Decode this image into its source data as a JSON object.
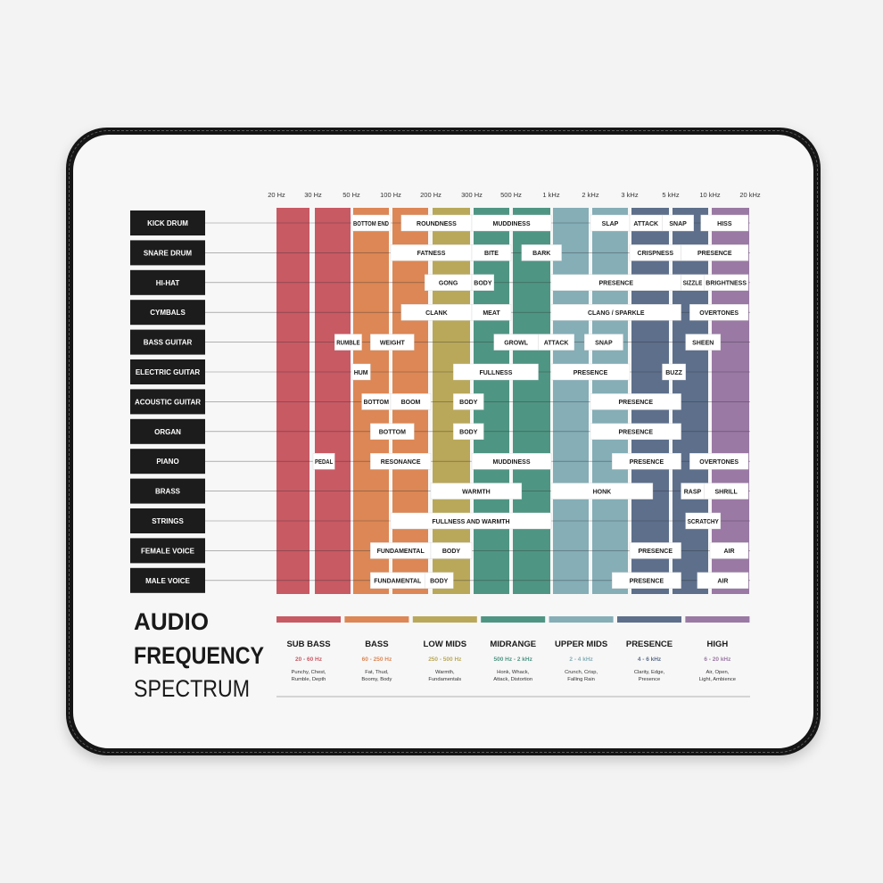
{
  "colors": {
    "sub_bass": "#c85a64",
    "bass": "#dc8755",
    "low_mids": "#b9a85a",
    "midrange": "#4f9583",
    "upper_mids": "#85aeb7",
    "presence": "#5d6f8b",
    "high": "#9a79a4"
  },
  "title": {
    "line1": "AUDIO",
    "line2": "FREQUENCY",
    "line3": "SPECTRUM"
  },
  "frequencies": [
    {
      "label": "20 Hz",
      "hz": 20
    },
    {
      "label": "30 Hz",
      "hz": 30
    },
    {
      "label": "50 Hz",
      "hz": 50
    },
    {
      "label": "100 Hz",
      "hz": 100
    },
    {
      "label": "200 Hz",
      "hz": 200
    },
    {
      "label": "300 Hz",
      "hz": 300
    },
    {
      "label": "500 Hz",
      "hz": 500
    },
    {
      "label": "1 kHz",
      "hz": 1000
    },
    {
      "label": "2 kHz",
      "hz": 2000
    },
    {
      "label": "3 kHz",
      "hz": 3000
    },
    {
      "label": "5 kHz",
      "hz": 5000
    },
    {
      "label": "10 kHz",
      "hz": 10000
    },
    {
      "label": "20 kHz",
      "hz": 20000
    }
  ],
  "instruments": [
    {
      "name": "KICK DRUM",
      "tags": [
        {
          "text": "BOTTOM END",
          "from": 50,
          "to": 100
        },
        {
          "text": "ROUNDNESS",
          "from": 120,
          "to": 300
        },
        {
          "text": "MUDDINESS",
          "from": 300,
          "to": 1000
        },
        {
          "text": "SLAP",
          "from": 2000,
          "to": 3000
        },
        {
          "text": "ATTACK",
          "from": 3000,
          "to": 4500
        },
        {
          "text": "SNAP",
          "from": 4500,
          "to": 7500
        },
        {
          "text": "HISS",
          "from": 8500,
          "to": 20000
        }
      ]
    },
    {
      "name": "SNARE DRUM",
      "tags": [
        {
          "text": "FATNESS",
          "from": 100,
          "to": 300
        },
        {
          "text": "BITE",
          "from": 300,
          "to": 500
        },
        {
          "text": "BARK",
          "from": 600,
          "to": 1200
        },
        {
          "text": "CRISPNESS",
          "from": 3000,
          "to": 6000
        },
        {
          "text": "PRESENCE",
          "from": 6000,
          "to": 20000
        }
      ]
    },
    {
      "name": "HI-HAT",
      "tags": [
        {
          "text": "GONG",
          "from": 180,
          "to": 300
        },
        {
          "text": "BODY",
          "from": 300,
          "to": 400
        },
        {
          "text": "PRESENCE",
          "from": 1000,
          "to": 6000
        },
        {
          "text": "SIZZLE",
          "from": 6000,
          "to": 9000
        },
        {
          "text": "BRIGHTNESS",
          "from": 9000,
          "to": 20000
        }
      ]
    },
    {
      "name": "CYMBALS",
      "tags": [
        {
          "text": "CLANK",
          "from": 120,
          "to": 300
        },
        {
          "text": "MEAT",
          "from": 300,
          "to": 500
        },
        {
          "text": "CLANG / SPARKLE",
          "from": 1000,
          "to": 6000
        },
        {
          "text": "OVERTONES",
          "from": 7000,
          "to": 20000
        }
      ]
    },
    {
      "name": "BASS GUITAR",
      "tags": [
        {
          "text": "RUMBLE",
          "from": 40,
          "to": 60
        },
        {
          "text": "WEIGHT",
          "from": 70,
          "to": 150
        },
        {
          "text": "GROWL",
          "from": 400,
          "to": 800
        },
        {
          "text": "ATTACK",
          "from": 800,
          "to": 1500
        },
        {
          "text": "SNAP",
          "from": 1800,
          "to": 2800
        },
        {
          "text": "SHEEN",
          "from": 6500,
          "to": 12000
        }
      ]
    },
    {
      "name": "ELECTRIC GUITAR",
      "tags": [
        {
          "text": "HUM",
          "from": 50,
          "to": 70
        },
        {
          "text": "FULLNESS",
          "from": 250,
          "to": 800
        },
        {
          "text": "PRESENCE",
          "from": 1000,
          "to": 3000
        },
        {
          "text": "BUZZ",
          "from": 4500,
          "to": 6500
        }
      ]
    },
    {
      "name": "ACOUSTIC GUITAR",
      "tags": [
        {
          "text": "BOTTOM",
          "from": 60,
          "to": 100
        },
        {
          "text": "BOOM",
          "from": 100,
          "to": 200
        },
        {
          "text": "BODY",
          "from": 250,
          "to": 350
        },
        {
          "text": "PRESENCE",
          "from": 2000,
          "to": 6000
        }
      ]
    },
    {
      "name": "ORGAN",
      "tags": [
        {
          "text": "BOTTOM",
          "from": 70,
          "to": 150
        },
        {
          "text": "BODY",
          "from": 250,
          "to": 350
        },
        {
          "text": "PRESENCE",
          "from": 2000,
          "to": 6000
        }
      ]
    },
    {
      "name": "PIANO",
      "tags": [
        {
          "text": "PEDAL",
          "from": 30,
          "to": 40
        },
        {
          "text": "RESONANCE",
          "from": 70,
          "to": 200
        },
        {
          "text": "MUDDINESS",
          "from": 300,
          "to": 1000
        },
        {
          "text": "PRESENCE",
          "from": 2500,
          "to": 6000
        },
        {
          "text": "OVERTONES",
          "from": 7000,
          "to": 20000
        }
      ]
    },
    {
      "name": "BRASS",
      "tags": [
        {
          "text": "WARMTH",
          "from": 200,
          "to": 600
        },
        {
          "text": "HONK",
          "from": 1000,
          "to": 4000
        },
        {
          "text": "RASP",
          "from": 6000,
          "to": 9000
        },
        {
          "text": "SHRILL",
          "from": 9000,
          "to": 20000
        }
      ]
    },
    {
      "name": "STRINGS",
      "tags": [
        {
          "text": "FULLNESS AND WARMTH",
          "from": 100,
          "to": 1000
        },
        {
          "text": "SCRATCHY",
          "from": 6500,
          "to": 12000
        }
      ]
    },
    {
      "name": "FEMALE VOICE",
      "tags": [
        {
          "text": "FUNDAMENTAL",
          "from": 70,
          "to": 200
        },
        {
          "text": "BODY",
          "from": 200,
          "to": 300
        },
        {
          "text": "PRESENCE",
          "from": 3000,
          "to": 6000
        },
        {
          "text": "AIR",
          "from": 10000,
          "to": 20000
        }
      ]
    },
    {
      "name": "MALE VOICE",
      "tags": [
        {
          "text": "FUNDAMENTAL",
          "from": 70,
          "to": 180
        },
        {
          "text": "BODY",
          "from": 180,
          "to": 250
        },
        {
          "text": "PRESENCE",
          "from": 2500,
          "to": 6000
        },
        {
          "text": "AIR",
          "from": 8000,
          "to": 20000
        }
      ]
    }
  ],
  "bands": [
    {
      "name": "SUB BASS",
      "range": "20 - 60 Hz",
      "desc1": "Punchy, Chest,",
      "desc2": "Rumble, Depth",
      "color_key": "sub_bass"
    },
    {
      "name": "BASS",
      "range": "60 - 250 Hz",
      "desc1": "Fat, Thud,",
      "desc2": "Boomy, Body",
      "color_key": "bass"
    },
    {
      "name": "LOW MIDS",
      "range": "250 - 500 Hz",
      "desc1": "Warmth,",
      "desc2": "Fundamentals",
      "color_key": "low_mids"
    },
    {
      "name": "MIDRANGE",
      "range": "500 Hz - 2 kHz",
      "desc1": "Honk, Whack,",
      "desc2": "Attack, Distortion",
      "color_key": "midrange"
    },
    {
      "name": "UPPER MIDS",
      "range": "2 - 4 kHz",
      "desc1": "Crunch, Crisp,",
      "desc2": "Falling Rain",
      "color_key": "upper_mids"
    },
    {
      "name": "PRESENCE",
      "range": "4 - 6 kHz",
      "desc1": "Clarity, Edge,",
      "desc2": "Presence",
      "color_key": "presence"
    },
    {
      "name": "HIGH",
      "range": "6 - 20 kHz",
      "desc1": "Air, Open,",
      "desc2": "Light, Ambience",
      "color_key": "high"
    }
  ]
}
